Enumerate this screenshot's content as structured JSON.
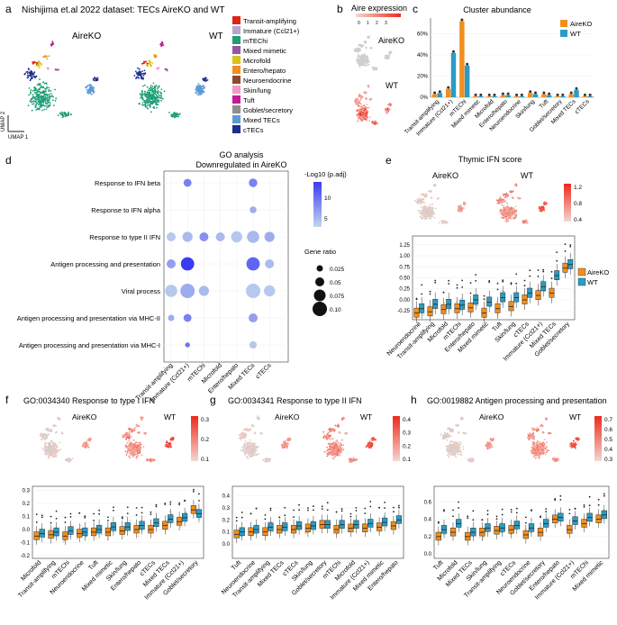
{
  "colors": {
    "aire": "#f28e1c",
    "wt": "#2b9cc4",
    "umap_gray": "#cfcfcf",
    "heat_low": "#f4d7cf",
    "heat_high": "#ee2a1b",
    "go_low": "#c3d6ee",
    "go_high": "#3b3bf2",
    "clusters": [
      "#e2231a",
      "#b6a5cf",
      "#1f9e76",
      "#9b53a3",
      "#d9c21a",
      "#f28e1c",
      "#8c4a2c",
      "#f29ac7",
      "#c21a93",
      "#8e8e8e",
      "#5a9bd5",
      "#1c2e8c"
    ]
  },
  "panel_a": {
    "letter": "a",
    "title": "Nishijima et.al 2022 dataset: TECs AireKO and WT",
    "label_ko": "AireKO",
    "label_wt": "WT",
    "umap2": "UMAP 2",
    "umap1": "UMAP 1",
    "legend": [
      "Transit-amplifying",
      "Immature (Ccl21+)",
      "mTEChi",
      "Mixed mimetic",
      "Microfold",
      "Entero/hepato",
      "Neuroendocrine",
      "Skin/lung",
      "Tuft",
      "Goblet/secretory",
      "Mixed TECs",
      "cTECs"
    ]
  },
  "panel_b": {
    "letter": "b",
    "title": "Aire expression",
    "scale_ticks": [
      "0",
      "1",
      "2",
      "3"
    ],
    "label_ko": "AireKO",
    "label_wt": "WT"
  },
  "panel_c": {
    "letter": "c",
    "chart_data": {
      "type": "bar",
      "title": "Cluster abundance",
      "categories": [
        "Transit-amplifying",
        "Immature (Ccl21+)",
        "mTEChi",
        "Mixed mimetic",
        "Microfold",
        "Entero/hepato",
        "Neuroendocrine",
        "Skin/lung",
        "Tuft",
        "Goblet/secretory",
        "Mixed TECs",
        "cTECs"
      ],
      "series": [
        {
          "name": "AireKO",
          "values": [
            3,
            8,
            72,
            1,
            1,
            2,
            1,
            4,
            3,
            1,
            3,
            1
          ]
        },
        {
          "name": "WT",
          "values": [
            4,
            42,
            30,
            1,
            1,
            2,
            1,
            3,
            2,
            1,
            7,
            1
          ]
        }
      ],
      "ylim": [
        0,
        75
      ],
      "yticks": [
        "0%",
        "20%",
        "40%",
        "60%"
      ]
    }
  },
  "panel_d": {
    "letter": "d",
    "chart_data": {
      "type": "scatter",
      "title": "GO analysis",
      "subtitle": "Downregulated in AireKO",
      "x": [
        "Transit-amplifying",
        "Immature (Ccl21+)",
        "mTEChi",
        "Microfold",
        "Entero/hepato",
        "Mixed TECs",
        "cTECs"
      ],
      "y": [
        "Response to IFN beta",
        "Response to IFN alpha",
        "Response to type II IFN",
        "Antigen processing and presentation",
        "Viral process",
        "Antigen processing and presentation via MHC-II",
        "Antigen processing and presentation via MHC-I"
      ],
      "points": [
        {
          "x": "Immature (Ccl21+)",
          "y": "Response to IFN beta",
          "ratio": 0.04,
          "p": 9
        },
        {
          "x": "Mixed TECs",
          "y": "Response to IFN beta",
          "ratio": 0.045,
          "p": 9
        },
        {
          "x": "Mixed TECs",
          "y": "Response to IFN alpha",
          "ratio": 0.03,
          "p": 6
        },
        {
          "x": "Transit-amplifying",
          "y": "Response to type II IFN",
          "ratio": 0.05,
          "p": 4
        },
        {
          "x": "Immature (Ccl21+)",
          "y": "Response to type II IFN",
          "ratio": 0.06,
          "p": 5
        },
        {
          "x": "mTEChi",
          "y": "Response to type II IFN",
          "ratio": 0.05,
          "p": 8
        },
        {
          "x": "Microfold",
          "y": "Response to type II IFN",
          "ratio": 0.05,
          "p": 5
        },
        {
          "x": "Entero/hepato",
          "y": "Response to type II IFN",
          "ratio": 0.07,
          "p": 4
        },
        {
          "x": "Mixed TECs",
          "y": "Response to type II IFN",
          "ratio": 0.08,
          "p": 5
        },
        {
          "x": "cTECs",
          "y": "Response to type II IFN",
          "ratio": 0.06,
          "p": 6
        },
        {
          "x": "Transit-amplifying",
          "y": "Antigen processing and presentation",
          "ratio": 0.05,
          "p": 7
        },
        {
          "x": "Immature (Ccl21+)",
          "y": "Antigen processing and presentation",
          "ratio": 0.09,
          "p": 14
        },
        {
          "x": "Mixed TECs",
          "y": "Antigen processing and presentation",
          "ratio": 0.09,
          "p": 11
        },
        {
          "x": "cTECs",
          "y": "Antigen processing and presentation",
          "ratio": 0.05,
          "p": 5
        },
        {
          "x": "Transit-amplifying",
          "y": "Viral process",
          "ratio": 0.08,
          "p": 4
        },
        {
          "x": "Immature (Ccl21+)",
          "y": "Viral process",
          "ratio": 0.1,
          "p": 6
        },
        {
          "x": "mTEChi",
          "y": "Viral process",
          "ratio": 0.06,
          "p": 5
        },
        {
          "x": "Mixed TECs",
          "y": "Viral process",
          "ratio": 0.1,
          "p": 4
        },
        {
          "x": "cTECs",
          "y": "Viral process",
          "ratio": 0.07,
          "p": 4
        },
        {
          "x": "Transit-amplifying",
          "y": "Antigen processing and presentation via MHC-II",
          "ratio": 0.025,
          "p": 6
        },
        {
          "x": "Immature (Ccl21+)",
          "y": "Antigen processing and presentation via MHC-II",
          "ratio": 0.04,
          "p": 9
        },
        {
          "x": "Mixed TECs",
          "y": "Antigen processing and presentation via MHC-II",
          "ratio": 0.05,
          "p": 7
        },
        {
          "x": "Immature (Ccl21+)",
          "y": "Antigen processing and presentation via MHC-I",
          "ratio": 0.012,
          "p": 10
        },
        {
          "x": "Mixed TECs",
          "y": "Antigen processing and presentation via MHC-I",
          "ratio": 0.035,
          "p": 4
        }
      ],
      "color_title": "-Log10 (p.adj)",
      "color_ticks": [
        "10",
        "5"
      ],
      "color_range": [
        3,
        14
      ],
      "size_title": "Gene ratio",
      "size_ticks": [
        "0.025",
        "0.05",
        "0.075",
        "0.10"
      ],
      "size_values": [
        0.025,
        0.05,
        0.075,
        0.1
      ]
    }
  },
  "panel_e": {
    "letter": "e",
    "title": "Thymic IFN score",
    "label_ko": "AireKO",
    "label_wt": "WT",
    "scale_ticks": [
      "1.2",
      "0.8",
      "0.4"
    ],
    "chart_data": {
      "type": "box",
      "ylim": [
        -0.45,
        1.45
      ],
      "yticks": [
        "-0.25",
        "0.00",
        "0.25",
        "0.50",
        "0.75",
        "1.00",
        "1.25"
      ],
      "categories": [
        "Neuroendocrine",
        "Transit-amplifying",
        "Microfold",
        "mTEChi",
        "Entero/hepato",
        "Mixed mimetic",
        "Tuft",
        "Skin/lung",
        "cTECs",
        "Immature (Ccl21+)",
        "Mixed TECs",
        "Goblet/secretory"
      ],
      "series": [
        {
          "name": "AireKO",
          "medians": [
            -0.3,
            -0.27,
            -0.22,
            -0.2,
            -0.18,
            -0.3,
            -0.2,
            -0.15,
            0.0,
            0.1,
            0.15,
            0.72
          ]
        },
        {
          "name": "WT",
          "medians": [
            -0.2,
            -0.1,
            -0.1,
            -0.12,
            0.0,
            -0.05,
            0.05,
            0.05,
            0.15,
            0.3,
            0.55,
            0.8
          ]
        }
      ]
    }
  },
  "panel_f": {
    "letter": "f",
    "title": "GO:0034340 Response to type I IFN",
    "label_ko": "AireKO",
    "label_wt": "WT",
    "scale_ticks": [
      "0.3",
      "0.2",
      "0.1"
    ],
    "chart_data": {
      "type": "box",
      "ylim": [
        -0.22,
        0.33
      ],
      "yticks": [
        "-0.2",
        "-0.1",
        "0.0",
        "0.1",
        "0.2",
        "0.3"
      ],
      "categories": [
        "Microfold",
        "Transit-amplifying",
        "mTEChi",
        "Neuroendocrine",
        "Tuft",
        "Mixed mimetic",
        "Skin/lung",
        "Entero/hepato",
        "cTECs",
        "Mixed TECs",
        "Immature (Ccl21+)",
        "Goblet/secretory"
      ],
      "series": [
        {
          "name": "AireKO",
          "medians": [
            -0.05,
            -0.04,
            -0.05,
            -0.03,
            -0.02,
            -0.02,
            -0.01,
            0.0,
            0.0,
            0.03,
            0.06,
            0.15
          ]
        },
        {
          "name": "WT",
          "medians": [
            -0.03,
            -0.02,
            -0.01,
            -0.02,
            0.0,
            0.02,
            0.02,
            0.03,
            0.05,
            0.08,
            0.09,
            0.12
          ]
        }
      ]
    }
  },
  "panel_g": {
    "letter": "g",
    "title": "GO:0034341 Response to type II IFN",
    "label_ko": "AireKO",
    "label_wt": "WT",
    "scale_ticks": [
      "0.4",
      "0.3",
      "0.2",
      "0.1"
    ],
    "chart_data": {
      "type": "box",
      "ylim": [
        -0.12,
        0.48
      ],
      "yticks": [
        "0.0",
        "0.1",
        "0.2",
        "0.3",
        "0.4"
      ],
      "categories": [
        "Tuft",
        "Neuroendocrine",
        "Transit-amplifying",
        "Mixed TECs",
        "cTECs",
        "Skin/lung",
        "Goblet/secretory",
        "mTEChi",
        "Microfold",
        "Immature (Ccl21+)",
        "Mixed mimetic",
        "Entero/hepato"
      ],
      "series": [
        {
          "name": "AireKO",
          "medians": [
            0.08,
            0.1,
            0.1,
            0.12,
            0.12,
            0.13,
            0.16,
            0.12,
            0.13,
            0.13,
            0.14,
            0.15
          ]
        },
        {
          "name": "WT",
          "medians": [
            0.1,
            0.12,
            0.14,
            0.14,
            0.15,
            0.15,
            0.16,
            0.16,
            0.16,
            0.17,
            0.18,
            0.2
          ]
        }
      ]
    }
  },
  "panel_h": {
    "letter": "h",
    "title": "GO:0019882 Antigen processing and presentation",
    "label_ko": "AireKO",
    "label_wt": "WT",
    "scale_ticks": [
      "0.7",
      "0.6",
      "0.5",
      "0.4",
      "0.3"
    ],
    "chart_data": {
      "type": "box",
      "ylim": [
        -0.05,
        0.78
      ],
      "yticks": [
        "0.0",
        "0.2",
        "0.4",
        "0.6"
      ],
      "categories": [
        "Tuft",
        "Microfold",
        "Mixed TECs",
        "Skin/lung",
        "Transit-amplifying",
        "cTECs",
        "Neuroendocrine",
        "Goblet/secretory",
        "Entero/hepato",
        "Immature (Ccl21+)",
        "mTEChi",
        "Mixed mimetic"
      ],
      "series": [
        {
          "name": "AireKO",
          "medians": [
            0.2,
            0.25,
            0.2,
            0.25,
            0.27,
            0.28,
            0.22,
            0.25,
            0.4,
            0.28,
            0.35,
            0.4
          ]
        },
        {
          "name": "WT",
          "medians": [
            0.28,
            0.35,
            0.25,
            0.3,
            0.3,
            0.33,
            0.3,
            0.35,
            0.42,
            0.38,
            0.42,
            0.45
          ]
        }
      ]
    }
  }
}
